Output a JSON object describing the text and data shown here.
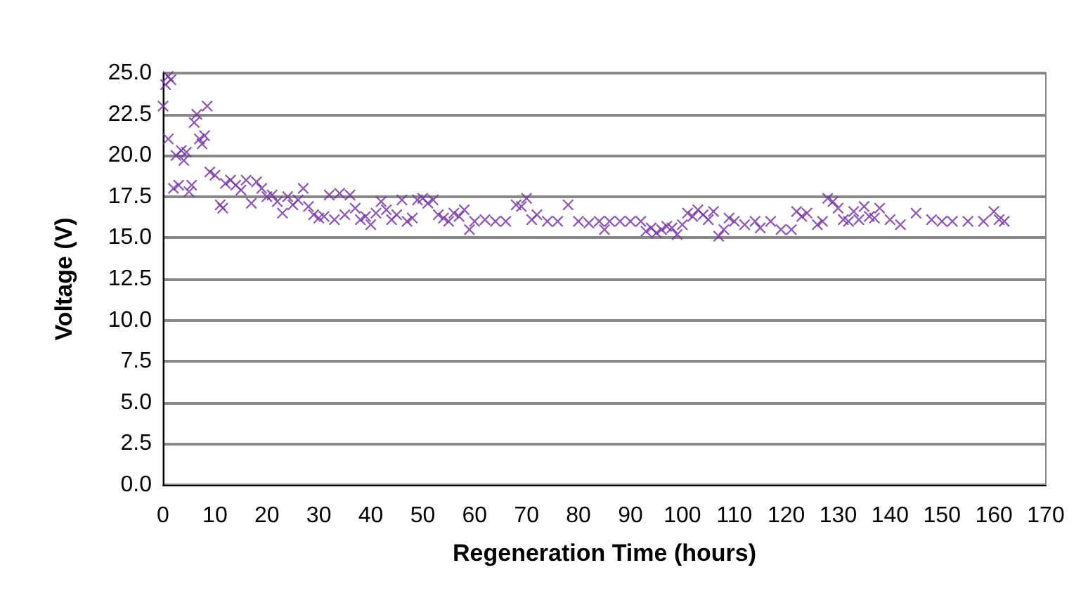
{
  "chart_data": {
    "type": "scatter",
    "xlabel": "Regeneration Time (hours)",
    "ylabel": "Voltage (V)",
    "xlim": [
      0,
      170
    ],
    "xticks": [
      0,
      10,
      20,
      30,
      40,
      50,
      60,
      70,
      80,
      90,
      100,
      110,
      120,
      130,
      140,
      150,
      160,
      170
    ],
    "ylim": [
      0,
      25
    ],
    "yticks": [
      {
        "value": 0,
        "label": "0.0"
      },
      {
        "value": 2.5,
        "label": "2.5"
      },
      {
        "value": 5,
        "label": "5.0"
      },
      {
        "value": 7.5,
        "label": "7.5"
      },
      {
        "value": 10,
        "label": "10.0"
      },
      {
        "value": 12.5,
        "label": "12.5"
      },
      {
        "value": 15,
        "label": "15.0"
      },
      {
        "value": 17.5,
        "label": "17.5"
      },
      {
        "value": 20,
        "label": "20.0"
      },
      {
        "value": 22.5,
        "label": "22.5"
      },
      {
        "value": 25,
        "label": "25.0"
      }
    ],
    "grid": "y",
    "marker": "cross",
    "series": [
      {
        "color": "#7030a0",
        "x": [
          0,
          0.5,
          1,
          1.5,
          1,
          2,
          3,
          2.5,
          3.5,
          4,
          4.5,
          5,
          5.5,
          6,
          6.5,
          7,
          7.5,
          8,
          8.5,
          9,
          10,
          11,
          11.5,
          12,
          13,
          14,
          15,
          16,
          17,
          18,
          19,
          20,
          21,
          22,
          23,
          24,
          25,
          26,
          27,
          28,
          29,
          30,
          31,
          32,
          33,
          34,
          35,
          36,
          37,
          38,
          39,
          40,
          41,
          42,
          43,
          44,
          45,
          46,
          47,
          48,
          49,
          50,
          51,
          52,
          53,
          54,
          55,
          56,
          57,
          58,
          59,
          60,
          62,
          64,
          66,
          68,
          69,
          70,
          71,
          72,
          74,
          76,
          78,
          80,
          82,
          84,
          85,
          86,
          88,
          90,
          92,
          93,
          94,
          95,
          96,
          97,
          98,
          99,
          100,
          101,
          102,
          103,
          104,
          105,
          106,
          107,
          108,
          109,
          110,
          112,
          114,
          115,
          117,
          119,
          121,
          122,
          123,
          124,
          126,
          127,
          128,
          129,
          130,
          131,
          132,
          133,
          134,
          135,
          136,
          137,
          138,
          140,
          142,
          145,
          148,
          150,
          152,
          155,
          158,
          160,
          161,
          162
        ],
        "values": [
          23,
          24.3,
          24.8,
          24.6,
          21,
          18,
          18.2,
          20,
          20.3,
          19.7,
          20.2,
          17.8,
          18.2,
          22,
          22.5,
          21,
          20.7,
          21.2,
          23,
          19,
          18.8,
          17,
          16.8,
          18.3,
          18.5,
          18.2,
          17.9,
          18.5,
          17.1,
          18.4,
          18,
          17.5,
          17.6,
          17.2,
          16.5,
          17.5,
          17,
          17.3,
          18,
          16.9,
          16.4,
          16.2,
          16.3,
          17.6,
          16.1,
          17.7,
          16.4,
          17.6,
          16.8,
          16.1,
          16.3,
          15.8,
          16.5,
          17.2,
          16.7,
          16.1,
          16.4,
          17.3,
          16,
          16.2,
          17.3,
          17.4,
          17.1,
          17.3,
          16.4,
          16.2,
          16,
          16.5,
          16.3,
          16.7,
          15.5,
          16,
          16.1,
          16,
          16,
          17,
          16.9,
          17.4,
          16.1,
          16.4,
          16,
          16,
          17,
          16,
          15.9,
          16,
          15.5,
          16,
          16,
          16,
          16,
          15.4,
          15.6,
          15.3,
          15.5,
          15.7,
          15.6,
          15.2,
          15.8,
          16.5,
          16.3,
          16.7,
          16.4,
          16.1,
          16.6,
          15.1,
          15.5,
          16.2,
          16,
          15.8,
          16,
          15.6,
          16,
          15.5,
          15.5,
          16.6,
          16.3,
          16.5,
          15.8,
          16,
          17.4,
          17.2,
          16.8,
          16.1,
          16,
          16.6,
          16.1,
          16.9,
          16.3,
          16.2,
          16.8,
          16.1,
          15.8,
          16.5,
          16.1,
          16,
          16,
          16,
          16,
          16.6,
          16.1,
          16
        ]
      }
    ]
  }
}
